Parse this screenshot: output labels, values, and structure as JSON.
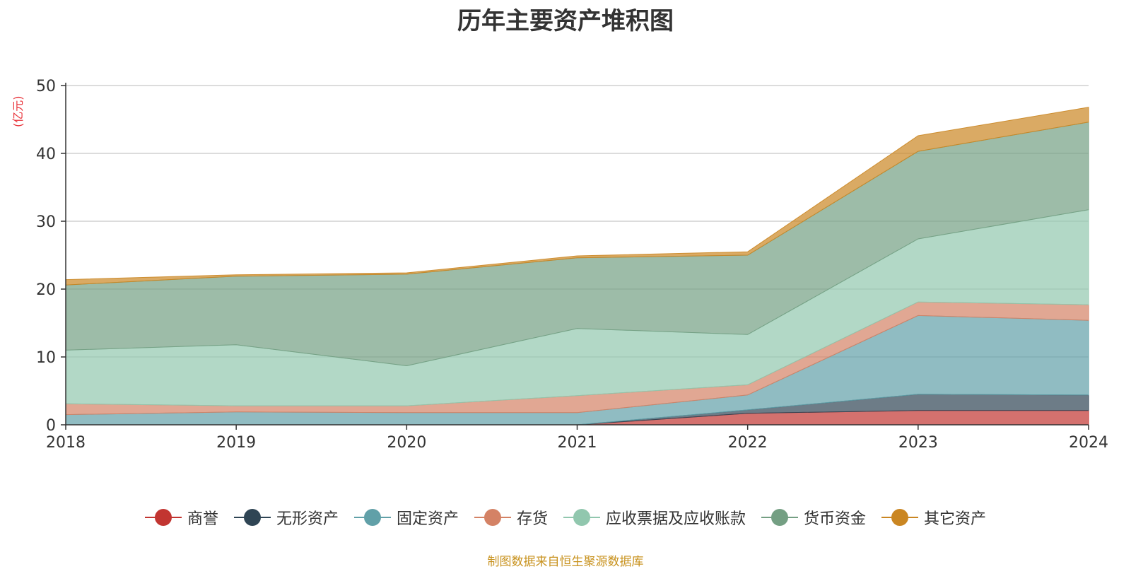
{
  "chart_data": {
    "type": "area",
    "stacked": true,
    "title": "历年主要资产堆积图",
    "ylabel": "(亿元)",
    "xlabel": "",
    "categories": [
      "2018",
      "2019",
      "2020",
      "2021",
      "2022",
      "2023",
      "2024"
    ],
    "ylim": [
      0,
      50
    ],
    "yticks": [
      0,
      10,
      20,
      30,
      40,
      50
    ],
    "grid": true,
    "legend_position": "bottom",
    "series": [
      {
        "name": "商誉",
        "color": "#c23531",
        "values": [
          0,
          0,
          0,
          0,
          1.7,
          2.1,
          2.1
        ]
      },
      {
        "name": "无形资产",
        "color": "#2f4554",
        "values": [
          0,
          0,
          0,
          0,
          0.5,
          2.4,
          2.3
        ]
      },
      {
        "name": "固定资产",
        "color": "#61a0a8",
        "values": [
          1.5,
          1.9,
          1.8,
          1.8,
          2.2,
          11.6,
          11.0
        ]
      },
      {
        "name": "存货",
        "color": "#d48265",
        "values": [
          1.6,
          0.9,
          1.0,
          2.5,
          1.5,
          2.0,
          2.3
        ]
      },
      {
        "name": "应收票据及应收账款",
        "color": "#91c7ae",
        "values": [
          7.9,
          9.0,
          5.9,
          9.9,
          7.4,
          9.3,
          14.0
        ]
      },
      {
        "name": "货币资金",
        "color": "#749f83",
        "values": [
          9.6,
          10.1,
          13.5,
          10.4,
          11.7,
          12.9,
          12.9
        ]
      },
      {
        "name": "其它资产",
        "color": "#ca8622",
        "values": [
          0.8,
          0.2,
          0.2,
          0.3,
          0.5,
          2.3,
          2.2
        ]
      }
    ]
  },
  "source_note": "制图数据来自恒生聚源数据库"
}
